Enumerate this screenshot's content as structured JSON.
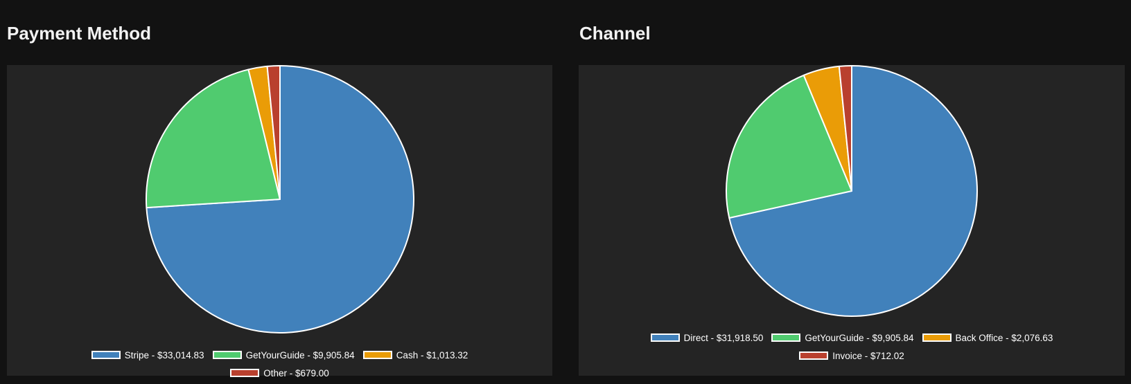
{
  "chart_data": [
    {
      "type": "pie",
      "title": "Payment Method",
      "series": [
        {
          "label": "Stripe - $33,014.83",
          "value": 33014.83,
          "color": "#4181bb"
        },
        {
          "label": "GetYourGuide - $9,905.84",
          "value": 9905.84,
          "color": "#50cb6f"
        },
        {
          "label": "Cash - $1,013.32",
          "value": 1013.32,
          "color": "#ea9c07"
        },
        {
          "label": "Other - $679.00",
          "value": 679.0,
          "color": "#b9402e"
        }
      ],
      "legend_position": "bottom"
    },
    {
      "type": "pie",
      "title": "Channel",
      "series": [
        {
          "label": "Direct - $31,918.50",
          "value": 31918.5,
          "color": "#4181bb"
        },
        {
          "label": "GetYourGuide - $9,905.84",
          "value": 9905.84,
          "color": "#50cb6f"
        },
        {
          "label": "Back Office - $2,076.63",
          "value": 2076.63,
          "color": "#ea9c07"
        },
        {
          "label": "Invoice - $712.02",
          "value": 712.02,
          "color": "#b9402e"
        }
      ],
      "legend_position": "bottom"
    }
  ]
}
